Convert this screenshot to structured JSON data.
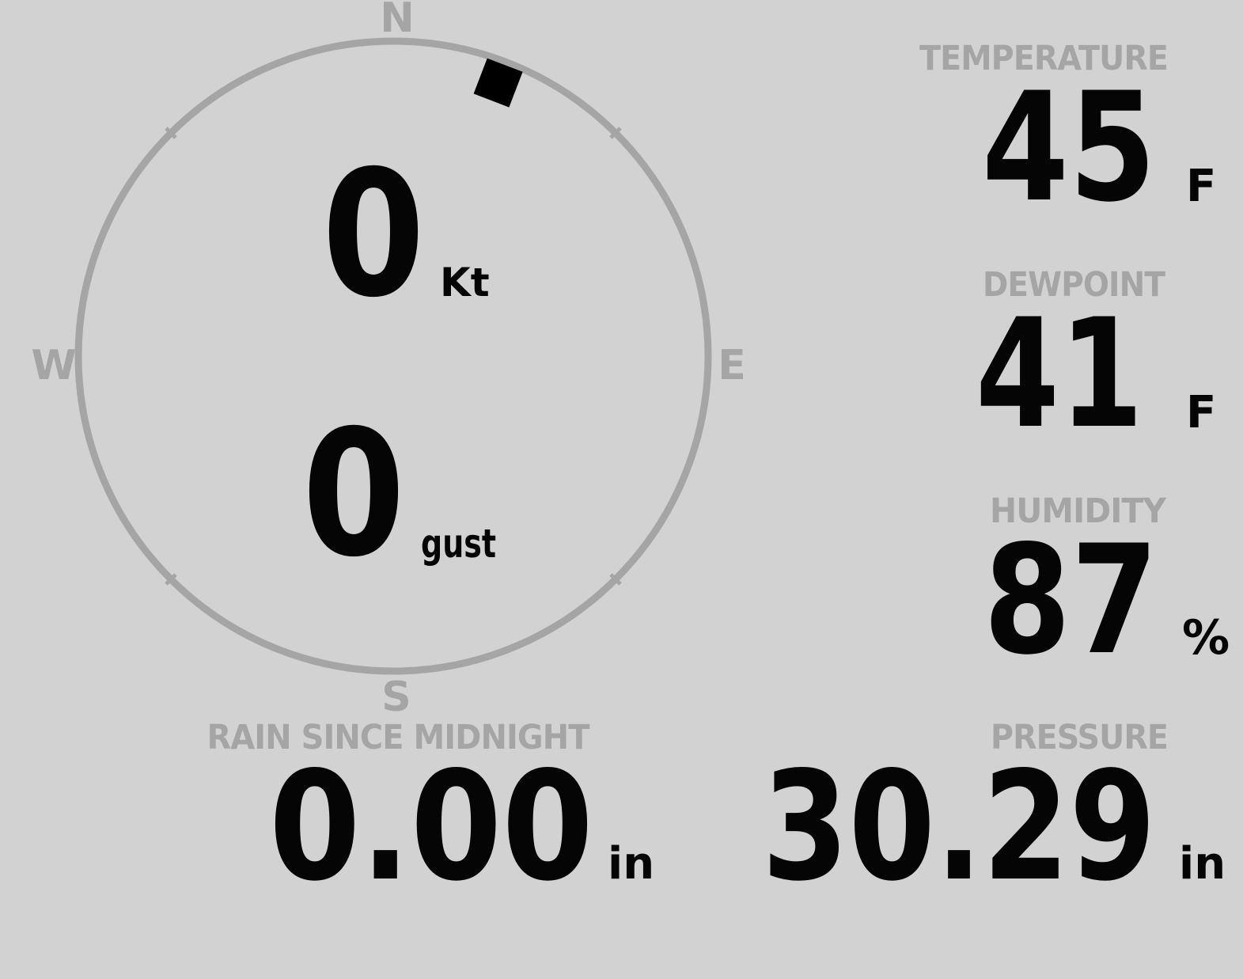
{
  "theme": {
    "background": "#d2d2d2",
    "muted": "#a5a5a5",
    "text": "#050505",
    "marker": "#000000"
  },
  "compass": {
    "cardinals": {
      "north": "N",
      "east": "E",
      "south": "S",
      "west": "W"
    },
    "wind_direction_deg": 21
  },
  "wind": {
    "speed": {
      "value": "0",
      "unit": "Kt"
    },
    "gust": {
      "value": "0",
      "unit": "gust"
    }
  },
  "metrics": {
    "temperature": {
      "label": "TEMPERATURE",
      "value": "45",
      "unit": "F"
    },
    "dewpoint": {
      "label": "DEWPOINT",
      "value": "41",
      "unit": "F"
    },
    "humidity": {
      "label": "HUMIDITY",
      "value": "87",
      "unit": "%"
    },
    "rain_since_midnight": {
      "label": "RAIN SINCE MIDNIGHT",
      "value": "0.00",
      "unit": "in"
    },
    "pressure": {
      "label": "PRESSURE",
      "value": "30.29",
      "unit": "in"
    }
  }
}
